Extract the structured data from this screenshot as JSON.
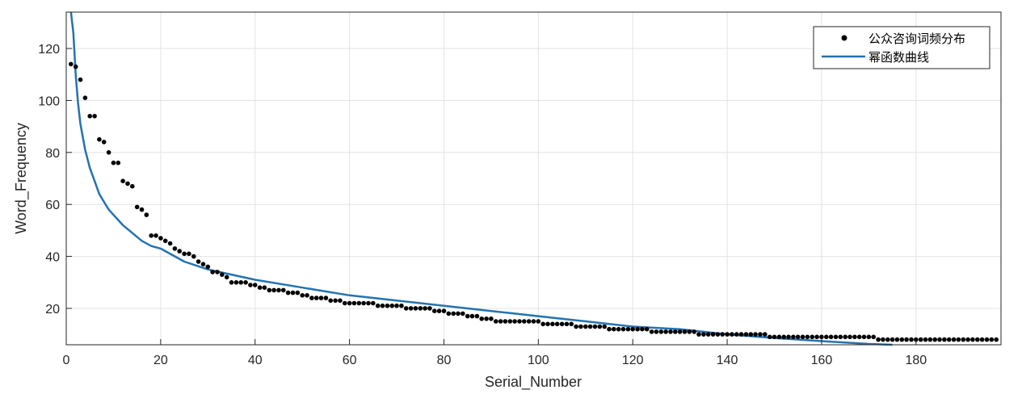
{
  "chart_data": {
    "type": "scatter",
    "title": "",
    "xlabel": "Serial_Number",
    "ylabel": "Word_Frequency",
    "xlim": [
      0,
      198
    ],
    "ylim": [
      6,
      134
    ],
    "xticks": [
      0,
      20,
      40,
      60,
      80,
      100,
      120,
      140,
      160,
      180
    ],
    "yticks": [
      20,
      40,
      60,
      80,
      100,
      120
    ],
    "grid": true,
    "legend_position": "top-right",
    "series": [
      {
        "name": "公众咨询词频分布",
        "kind": "scatter",
        "color": "#000000",
        "x": [
          1,
          2,
          3,
          4,
          5,
          6,
          7,
          8,
          9,
          10,
          11,
          12,
          13,
          14,
          15,
          16,
          17,
          18,
          19,
          20,
          21,
          22,
          23,
          24,
          25,
          26,
          27,
          28,
          29,
          30,
          31,
          32,
          33,
          34,
          35,
          36,
          37,
          38,
          39,
          40,
          41,
          42,
          43,
          44,
          45,
          46,
          47,
          48,
          49,
          50,
          51,
          52,
          53,
          54,
          55,
          56,
          57,
          58,
          59,
          60,
          61,
          62,
          63,
          64,
          65,
          66,
          67,
          68,
          69,
          70,
          71,
          72,
          73,
          74,
          75,
          76,
          77,
          78,
          79,
          80,
          81,
          82,
          83,
          84,
          85,
          86,
          87,
          88,
          89,
          90,
          91,
          92,
          93,
          94,
          95,
          96,
          97,
          98,
          99,
          100,
          101,
          102,
          103,
          104,
          105,
          106,
          107,
          108,
          109,
          110,
          111,
          112,
          113,
          114,
          115,
          116,
          117,
          118,
          119,
          120,
          121,
          122,
          123,
          124,
          125,
          126,
          127,
          128,
          129,
          130,
          131,
          132,
          133,
          134,
          135,
          136,
          137,
          138,
          139,
          140,
          141,
          142,
          143,
          144,
          145,
          146,
          147,
          148,
          149,
          150,
          151,
          152,
          153,
          154,
          155,
          156,
          157,
          158,
          159,
          160,
          161,
          162,
          163,
          164,
          165,
          166,
          167,
          168,
          169,
          170,
          171,
          172,
          173,
          174,
          175,
          176,
          177,
          178,
          179,
          180,
          181,
          182,
          183,
          184,
          185,
          186,
          187,
          188,
          189,
          190,
          191,
          192,
          193,
          194,
          195,
          196,
          197
        ],
        "y": [
          114,
          113,
          108,
          101,
          94,
          94,
          85,
          84,
          80,
          76,
          76,
          69,
          68,
          67,
          59,
          58,
          56,
          48,
          48,
          47,
          46,
          45,
          43,
          42,
          41,
          41,
          40,
          38,
          37,
          36,
          34,
          34,
          33,
          32,
          30,
          30,
          30,
          30,
          29,
          29,
          28,
          28,
          27,
          27,
          27,
          27,
          26,
          26,
          26,
          25,
          25,
          24,
          24,
          24,
          24,
          23,
          23,
          23,
          22,
          22,
          22,
          22,
          22,
          22,
          22,
          21,
          21,
          21,
          21,
          21,
          21,
          20,
          20,
          20,
          20,
          20,
          20,
          19,
          19,
          19,
          18,
          18,
          18,
          18,
          17,
          17,
          17,
          16,
          16,
          16,
          15,
          15,
          15,
          15,
          15,
          15,
          15,
          15,
          15,
          15,
          14,
          14,
          14,
          14,
          14,
          14,
          14,
          13,
          13,
          13,
          13,
          13,
          13,
          13,
          12,
          12,
          12,
          12,
          12,
          12,
          12,
          12,
          12,
          11,
          11,
          11,
          11,
          11,
          11,
          11,
          11,
          11,
          11,
          10,
          10,
          10,
          10,
          10,
          10,
          10,
          10,
          10,
          10,
          10,
          10,
          10,
          10,
          10,
          9,
          9,
          9,
          9,
          9,
          9,
          9,
          9,
          9,
          9,
          9,
          9,
          9,
          9,
          9,
          9,
          9,
          9,
          9,
          9,
          9,
          9,
          9,
          8,
          8,
          8,
          8,
          8,
          8,
          8,
          8,
          8,
          8,
          8,
          8,
          8,
          8,
          8,
          8,
          8,
          8,
          8,
          8,
          8,
          8,
          8,
          8,
          8,
          8
        ]
      },
      {
        "name": "幂函数曲线",
        "kind": "line",
        "color": "#2473b0",
        "x": [
          1,
          1.5,
          2,
          2.5,
          3,
          4,
          5,
          6,
          7,
          8,
          9,
          10,
          12,
          14,
          16,
          18,
          20,
          25,
          30,
          35,
          40,
          50,
          60,
          70,
          80,
          90,
          100,
          110,
          120,
          130,
          140,
          150,
          160,
          170,
          175
        ],
        "y": [
          138,
          126,
          110,
          99,
          91,
          81,
          74,
          69,
          64,
          61,
          58,
          56,
          52,
          49,
          46,
          44,
          43,
          38,
          35,
          33,
          31,
          28,
          25,
          23,
          21,
          19,
          17,
          15,
          13,
          12,
          10,
          8.6,
          7.4,
          6.3,
          5.5
        ]
      }
    ]
  }
}
